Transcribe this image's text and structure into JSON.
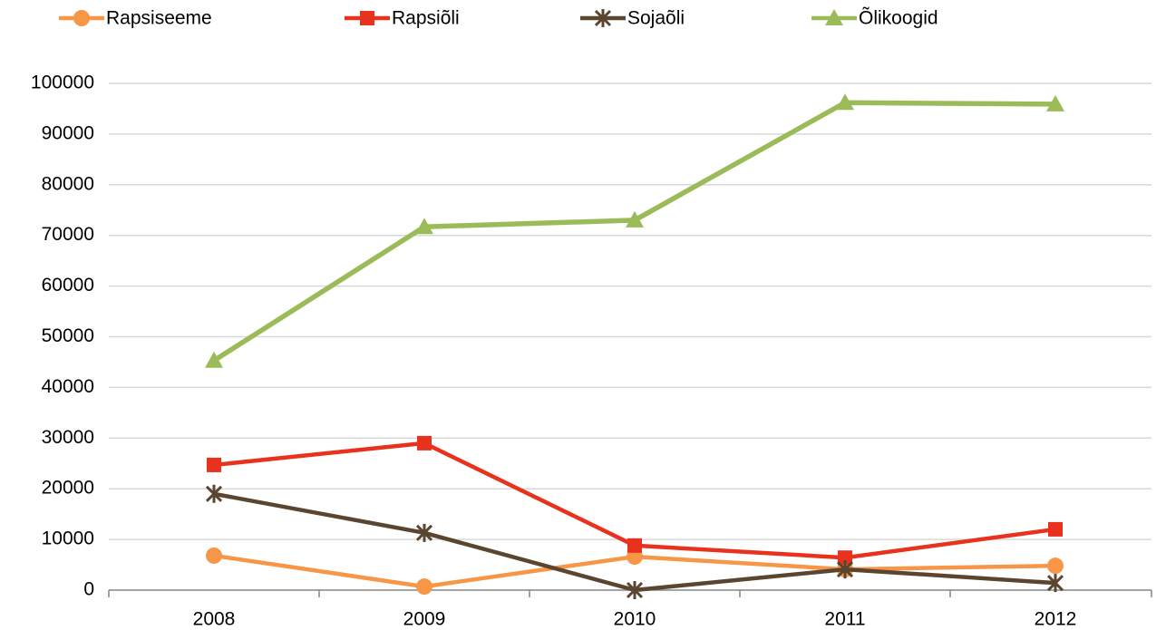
{
  "chart_data": {
    "type": "line",
    "categories": [
      "2008",
      "2009",
      "2010",
      "2011",
      "2012"
    ],
    "series": [
      {
        "name": "Rapsiseeme",
        "color": "#f79646",
        "marker": "circle",
        "values": [
          6800,
          700,
          6600,
          4100,
          4800
        ]
      },
      {
        "name": "Rapsiõli",
        "color": "#e8321e",
        "marker": "square",
        "values": [
          24700,
          29000,
          8800,
          6400,
          12000
        ]
      },
      {
        "name": "Sojaõli",
        "color": "#5a4630",
        "marker": "star",
        "values": [
          19000,
          11300,
          0,
          4100,
          1400
        ]
      },
      {
        "name": "Õlikoogid",
        "color": "#9bbb59",
        "marker": "triangle",
        "values": [
          45300,
          71700,
          73000,
          96200,
          95900
        ]
      }
    ],
    "ylim": [
      0,
      100000
    ],
    "yticks": [
      0,
      10000,
      20000,
      30000,
      40000,
      50000,
      60000,
      70000,
      80000,
      90000,
      100000
    ],
    "grid": true,
    "legend": "top"
  }
}
